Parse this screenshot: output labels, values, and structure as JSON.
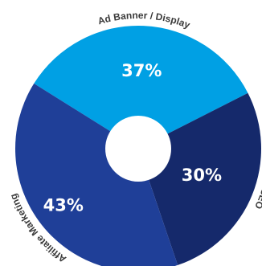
{
  "chart_data": {
    "type": "pie",
    "style": "donut",
    "slices": [
      {
        "label": "Ad Banner / Display",
        "value": 37,
        "value_label": "37%",
        "color": "#00a0e4"
      },
      {
        "label": "SEO",
        "value": 30,
        "value_label": "30%",
        "color": "#15296b"
      },
      {
        "label": "Affiliate Marketing",
        "value": 43,
        "value_label": "43%",
        "color": "#1f3f98"
      }
    ],
    "start_angle_deg": 302,
    "legend": "none"
  }
}
